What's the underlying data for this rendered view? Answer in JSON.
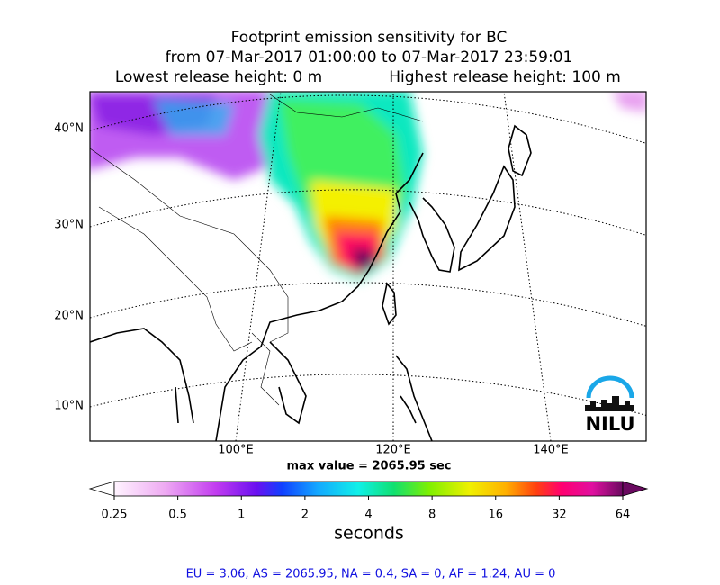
{
  "title": [
    "Footprint emission sensitivity for BC",
    "from 07-Mar-2017 01:00:00 to 07-Mar-2017 23:59:01"
  ],
  "release": [
    "Lowest release height: 0 m",
    "Highest release height: 100 m"
  ],
  "map": {
    "lat_labels": [
      "40°N",
      "30°N",
      "20°N",
      "10°N"
    ],
    "lon_labels": [
      "100°E",
      "120°E",
      "140°E"
    ],
    "max_value": "max value = 2065.95 sec",
    "logo": "NILU"
  },
  "colorbar": {
    "lim": [
      0.25,
      64
    ],
    "log": true,
    "ticks": [
      0.25,
      0.5,
      1,
      2,
      4,
      8,
      16,
      32,
      64
    ],
    "label": "seconds"
  },
  "footer": "EU = 3.06,  AS = 2065.95,  NA = 0.4,  SA = 0,  AF = 1.24,  AU = 0"
}
